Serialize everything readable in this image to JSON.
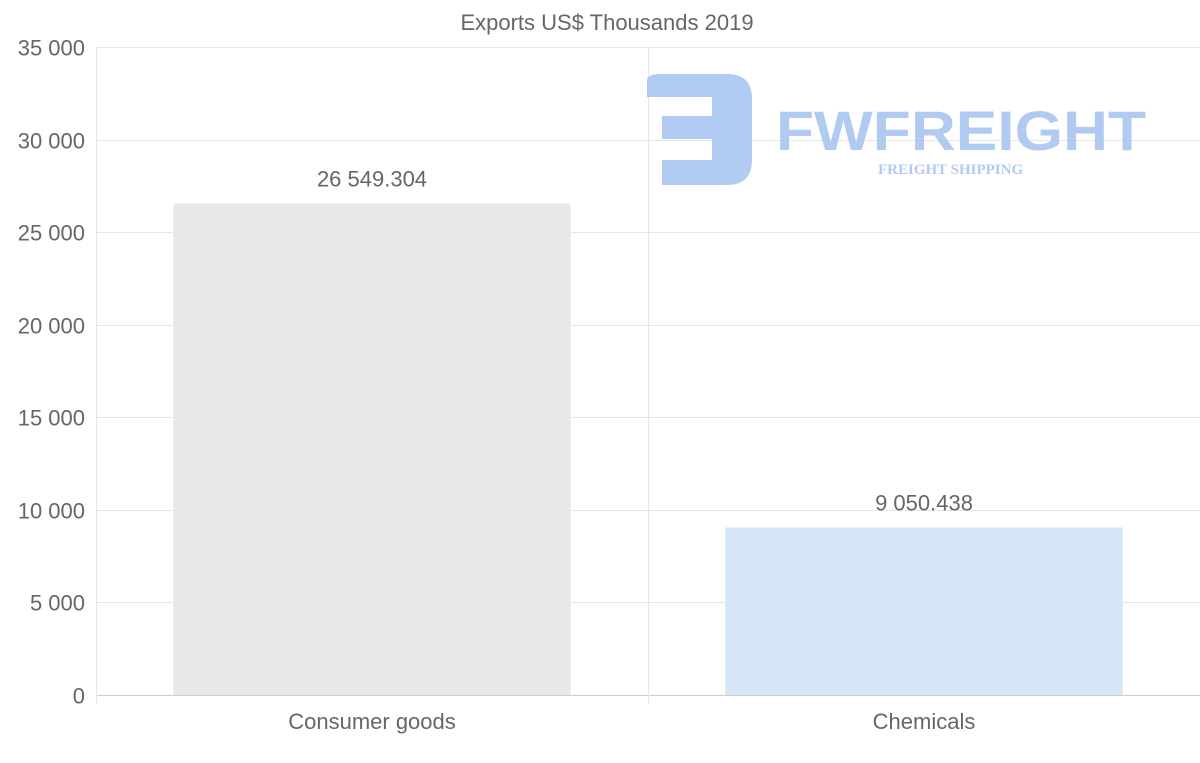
{
  "chart_data": {
    "type": "bar",
    "title": "Exports US$ Thousands 2019",
    "categories": [
      "Consumer goods",
      "Chemicals"
    ],
    "values": [
      26549.304,
      9050.438
    ],
    "data_labels": [
      "26 549.304",
      "9 050.438"
    ],
    "colors": [
      "#e8e8e8",
      "#d6e6f8"
    ],
    "xlabel": "",
    "ylabel": "",
    "ylim": [
      0,
      35000
    ],
    "yticks": [
      0,
      5000,
      10000,
      15000,
      20000,
      25000,
      30000,
      35000
    ],
    "ytick_labels": [
      "0",
      "5 000",
      "10 000",
      "15 000",
      "20 000",
      "25 000",
      "30 000",
      "35 000"
    ],
    "grid": true,
    "legend": "none"
  },
  "watermark": {
    "brand": "FWFREIGHT",
    "tagline": "FREIGHT SHIPPING",
    "color": "#adc8f2"
  }
}
